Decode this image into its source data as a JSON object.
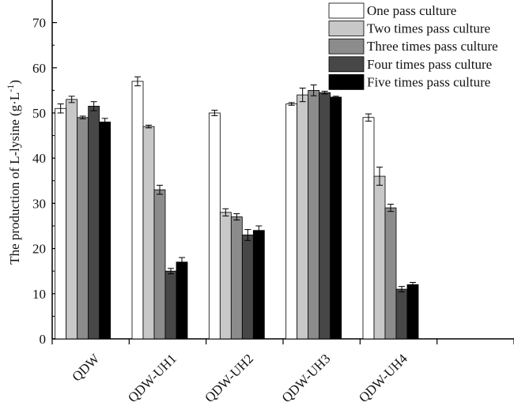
{
  "chart_data": {
    "type": "bar",
    "ylabel": "The production of L-lysine (g·L",
    "ylabel_sup": "-1",
    "ylabel_close": ")",
    "ylim": [
      0,
      75
    ],
    "yticks": [
      0,
      10,
      20,
      30,
      40,
      50,
      60,
      70
    ],
    "categories": [
      "QDW",
      "QDW-UH1",
      "QDW-UH2",
      "QDW-UH3",
      "QDW-UH4"
    ],
    "extra_empty_slots": 1,
    "grid": false,
    "legend_position": "top-right",
    "series": [
      {
        "name": "One pass culture",
        "color": "#ffffff",
        "values": [
          51,
          57,
          50,
          52,
          49
        ],
        "errors": [
          1.0,
          1.0,
          0.6,
          0.3,
          0.8
        ]
      },
      {
        "name": "Two times pass culture",
        "color": "#c8c8c8",
        "values": [
          53,
          47,
          28,
          54,
          36
        ],
        "errors": [
          0.7,
          0.3,
          0.8,
          1.5,
          2.0
        ]
      },
      {
        "name": "Three times pass culture",
        "color": "#8c8c8c",
        "values": [
          49,
          33,
          27,
          55,
          29
        ],
        "errors": [
          0.3,
          1.0,
          0.7,
          1.2,
          0.8
        ]
      },
      {
        "name": "Four times pass culture",
        "color": "#474747",
        "values": [
          51.5,
          15,
          23,
          54.5,
          11
        ],
        "errors": [
          1.0,
          0.6,
          1.2,
          0.3,
          0.6
        ]
      },
      {
        "name": "Five times pass culture",
        "color": "#000000",
        "values": [
          48,
          17,
          24,
          53.5,
          12
        ],
        "errors": [
          0.8,
          1.0,
          1.0,
          0.2,
          0.5
        ]
      }
    ]
  }
}
